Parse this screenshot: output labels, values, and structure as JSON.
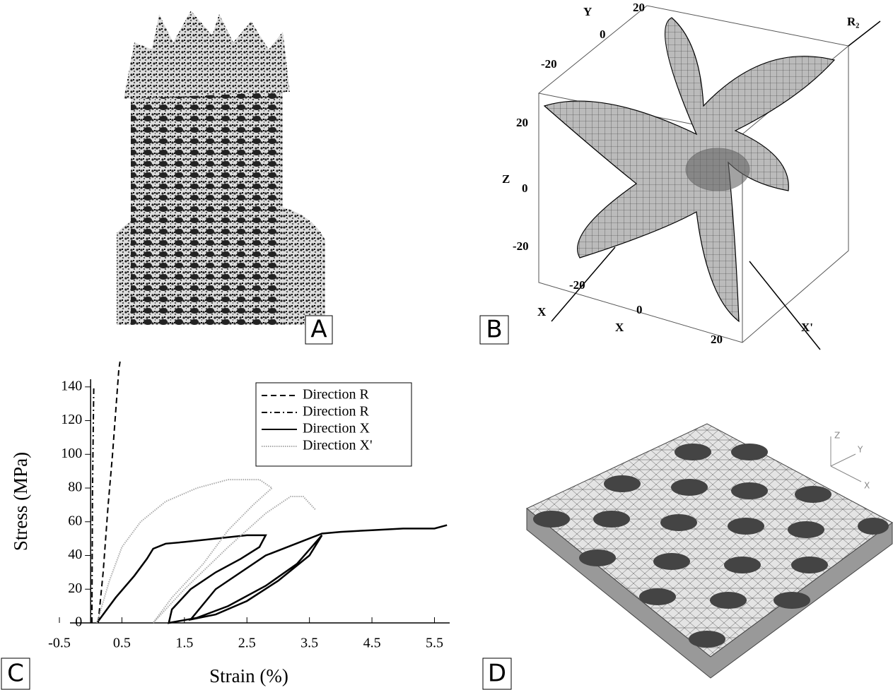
{
  "panels": {
    "a": {
      "label": "A"
    },
    "b": {
      "label": "B",
      "texts": [
        "Y",
        "20",
        "0",
        "-20",
        "R₂",
        "20",
        "Z",
        "0",
        "-20",
        "X",
        "-20",
        "0",
        "X",
        "20",
        "X'"
      ]
    },
    "c": {
      "label": "C"
    },
    "d": {
      "label": "D",
      "texts": [
        "Z",
        "Y",
        "X"
      ]
    }
  },
  "chart_data": {
    "type": "line",
    "x_label": "Strain (%)",
    "y_label": "Stress (MPa)",
    "xlim": [
      -0.5,
      5.8
    ],
    "ylim": [
      0,
      155
    ],
    "xticks": [
      -0.5,
      0.5,
      1.5,
      2.5,
      3.5,
      4.5,
      5.5
    ],
    "yticks": [
      0,
      20,
      40,
      60,
      80,
      100,
      120,
      140
    ],
    "legend": "top-right",
    "series": [
      {
        "name": "Direction R",
        "color": "#000000",
        "line_style": "dashed",
        "x": [
          0.12,
          0.2,
          0.28,
          0.35,
          0.4,
          0.45,
          0.47
        ],
        "values": [
          0,
          30,
          70,
          100,
          125,
          150,
          155
        ]
      },
      {
        "name": "Direction R",
        "color": "#000000",
        "line_style": "dashdot",
        "x": [
          0.02,
          0.03,
          0.05
        ],
        "values": [
          0,
          80,
          140
        ]
      },
      {
        "name": "Direction X",
        "color": "#000000",
        "line_style": "solid",
        "x": [
          0.1,
          0.4,
          0.7,
          0.9,
          1.0,
          1.2,
          1.5,
          2.0,
          2.5,
          2.8,
          2.7,
          2.4,
          2.0,
          1.6,
          1.3,
          1.25,
          1.7,
          2.2,
          2.8,
          3.3,
          3.7,
          3.5,
          3.0,
          2.5,
          2.0,
          1.6,
          2.0,
          2.8,
          3.7,
          4.0,
          4.5,
          5.0,
          5.5,
          5.7
        ],
        "values": [
          0,
          15,
          28,
          38,
          44,
          47,
          48,
          50,
          52,
          52,
          45,
          38,
          30,
          20,
          8,
          0,
          3,
          10,
          22,
          35,
          52,
          40,
          25,
          13,
          5,
          2,
          20,
          40,
          53,
          54,
          55,
          56,
          56,
          58
        ]
      },
      {
        "name": "Direction X'",
        "color": "#aaaaaa",
        "line_style": "dotted",
        "x": [
          0.1,
          0.3,
          0.5,
          0.8,
          1.2,
          1.7,
          2.2,
          2.7,
          2.9,
          2.6,
          2.2,
          1.8,
          1.3,
          1.0,
          1.5,
          2.2,
          2.8,
          3.2,
          3.4,
          3.6
        ],
        "values": [
          0,
          25,
          45,
          60,
          72,
          80,
          85,
          85,
          80,
          70,
          55,
          35,
          15,
          0,
          20,
          45,
          65,
          75,
          75,
          67
        ]
      }
    ]
  }
}
